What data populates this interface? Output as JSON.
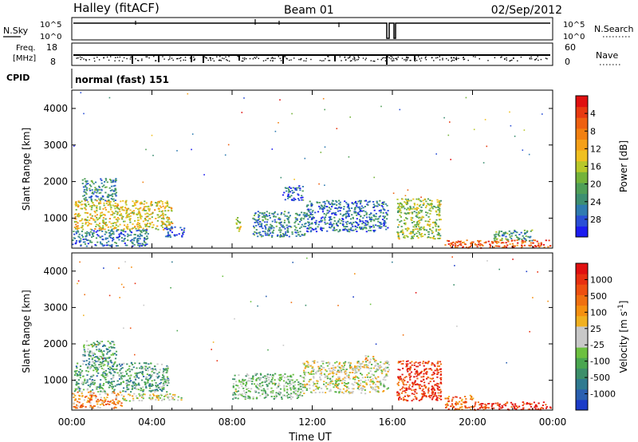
{
  "header": {
    "title": "Halley (fitACF)",
    "beam": "Beam 01",
    "date": "02/Sep/2012"
  },
  "top_panels": {
    "nsky_label": "N.Sky",
    "nsky_ticks": [
      "10^5",
      "10^0"
    ],
    "nsearch_label": "N.Search",
    "nsearch_ticks": [
      "10^5",
      "10^0"
    ],
    "freq_label_1": "Freq.",
    "freq_label_2": "[MHz]",
    "freq_ticks": [
      "18",
      "8"
    ],
    "nave_label": "Nave",
    "nave_ticks": [
      "60",
      "0"
    ],
    "cpid_label": "CPID",
    "cpid_value": "normal (fast) 151"
  },
  "chart_data": [
    {
      "type": "heatmap",
      "name": "power",
      "ylabel": "Slant Range [km]",
      "ylim": [
        180,
        4500
      ],
      "yticks": [
        1000,
        2000,
        3000,
        4000
      ],
      "xlim": [
        0,
        24
      ],
      "xticks": [
        "00:00",
        "04:00",
        "08:00",
        "12:00",
        "16:00",
        "20:00",
        "00:00"
      ],
      "colorbar": {
        "label": "Power [dB]",
        "ticks": [
          "4",
          "8",
          "12",
          "16",
          "20",
          "24",
          "28"
        ],
        "colors": [
          "#1c1cf0",
          "#2a4fd6",
          "#2f7bb0",
          "#3d8f72",
          "#4f9f58",
          "#74b33a",
          "#b8c82a",
          "#f0c020",
          "#f5a018",
          "#f28010",
          "#ee6010",
          "#e83a10",
          "#e01010"
        ]
      },
      "regions": [
        {
          "t0": 0.1,
          "t1": 5.0,
          "r0": 700,
          "r1": 1500,
          "level": 0.55
        },
        {
          "t0": 0.5,
          "t1": 2.2,
          "r0": 1500,
          "r1": 2100,
          "level": 0.25
        },
        {
          "t0": 0.0,
          "t1": 3.8,
          "r0": 250,
          "r1": 700,
          "level": 0.2
        },
        {
          "t0": 4.6,
          "t1": 5.6,
          "r0": 500,
          "r1": 800,
          "level": 0.15
        },
        {
          "t0": 8.1,
          "t1": 8.4,
          "r0": 650,
          "r1": 1050,
          "level": 0.5
        },
        {
          "t0": 9.0,
          "t1": 11.6,
          "r0": 500,
          "r1": 1200,
          "level": 0.25
        },
        {
          "t0": 11.6,
          "t1": 15.8,
          "r0": 650,
          "r1": 1500,
          "level": 0.2
        },
        {
          "t0": 10.5,
          "t1": 11.5,
          "r0": 1500,
          "r1": 1900,
          "level": 0.15
        },
        {
          "t0": 16.2,
          "t1": 18.4,
          "r0": 450,
          "r1": 1550,
          "level": 0.45
        },
        {
          "t0": 18.6,
          "t1": 23.9,
          "r0": 200,
          "r1": 420,
          "level": 0.85
        },
        {
          "t0": 21.0,
          "t1": 23.0,
          "r0": 400,
          "r1": 700,
          "level": 0.3
        }
      ]
    },
    {
      "type": "heatmap",
      "name": "velocity",
      "ylabel": "Slant Range [km]",
      "ylim": [
        180,
        4500
      ],
      "yticks": [
        1000,
        2000,
        3000,
        4000
      ],
      "xlim": [
        0,
        24
      ],
      "xticks": [
        "00:00",
        "04:00",
        "08:00",
        "12:00",
        "16:00",
        "20:00",
        "00:00"
      ],
      "xlabel": "Time UT",
      "colorbar": {
        "label": "Velocity [m s",
        "label_sup": "-1",
        "label_end": "]",
        "ticks": [
          "1000",
          "500",
          "100",
          "25",
          "-25",
          "-100",
          "-500",
          "-1000"
        ],
        "colors": [
          "#1c3cc8",
          "#2a60b0",
          "#2f7a90",
          "#3c8f6a",
          "#4aa650",
          "#6cc040",
          "#c8c8c8",
          "#c8c8c8",
          "#f0b020",
          "#f59010",
          "#f07010",
          "#ee5010",
          "#e83010",
          "#e01010"
        ]
      },
      "regions": [
        {
          "t0": 0.1,
          "t1": 4.8,
          "r0": 700,
          "r1": 1500,
          "level": 0.3
        },
        {
          "t0": 0.5,
          "t1": 2.2,
          "r0": 1500,
          "r1": 2100,
          "level": 0.3
        },
        {
          "t0": 0.0,
          "t1": 2.5,
          "r0": 250,
          "r1": 700,
          "level": 0.7
        },
        {
          "t0": 2.5,
          "t1": 5.5,
          "r0": 450,
          "r1": 650,
          "level": 0.5
        },
        {
          "t0": 8.0,
          "t1": 11.5,
          "r0": 500,
          "r1": 1200,
          "level": 0.4
        },
        {
          "t0": 11.5,
          "t1": 15.8,
          "r0": 650,
          "r1": 1550,
          "level": 0.5
        },
        {
          "t0": 14.6,
          "t1": 15.2,
          "r0": 1550,
          "r1": 1700,
          "level": 0.6
        },
        {
          "t0": 16.2,
          "t1": 18.4,
          "r0": 450,
          "r1": 1550,
          "level": 0.88
        },
        {
          "t0": 18.6,
          "t1": 20.0,
          "r0": 200,
          "r1": 600,
          "level": 0.75
        },
        {
          "t0": 20.0,
          "t1": 23.9,
          "r0": 200,
          "r1": 420,
          "level": 0.9
        }
      ]
    }
  ]
}
